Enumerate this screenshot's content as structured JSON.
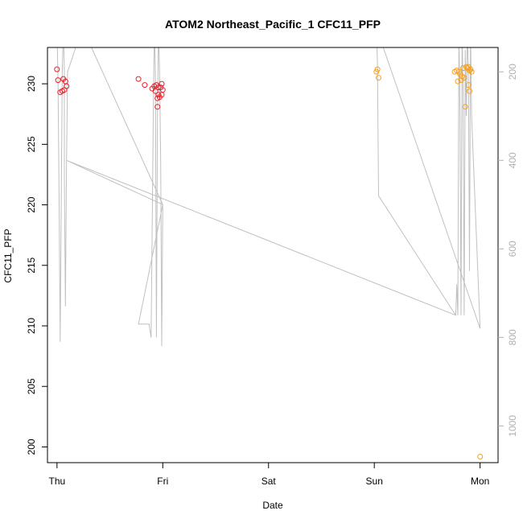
{
  "chart_data": {
    "type": "scatter",
    "title": "ATOM2 Northeast_Pacific_1 CFC11_PFP",
    "xlabel": "Date",
    "ylabel": "CFC11_PFP",
    "x_ticks": [
      "Thu",
      "Fri",
      "Sat",
      "Sun",
      "Mon"
    ],
    "x_range": [
      -0.09,
      4.17
    ],
    "ylim": [
      198.7,
      233.0
    ],
    "y_ticks": [
      200,
      205,
      210,
      215,
      220,
      225,
      230
    ],
    "right_axis": {
      "ticks": [
        200,
        400,
        600,
        800,
        1000
      ],
      "range": [
        1083,
        145
      ],
      "color": "#b0b0b0"
    },
    "grid": false,
    "series": [
      {
        "color": "#e8202a",
        "points": [
          {
            "x": 0.0,
            "y": 231.2
          },
          {
            "x": 0.01,
            "y": 230.3
          },
          {
            "x": 0.03,
            "y": 229.3
          },
          {
            "x": 0.05,
            "y": 229.4
          },
          {
            "x": 0.06,
            "y": 230.4
          },
          {
            "x": 0.07,
            "y": 229.5
          },
          {
            "x": 0.08,
            "y": 230.2
          },
          {
            "x": 0.09,
            "y": 229.8
          },
          {
            "x": 0.77,
            "y": 230.4
          },
          {
            "x": 0.83,
            "y": 229.9
          },
          {
            "x": 0.9,
            "y": 229.6
          },
          {
            "x": 0.92,
            "y": 229.8
          },
          {
            "x": 0.93,
            "y": 229.4
          },
          {
            "x": 0.94,
            "y": 229.9
          },
          {
            "x": 0.95,
            "y": 228.8
          },
          {
            "x": 0.95,
            "y": 228.1
          },
          {
            "x": 0.96,
            "y": 229.1
          },
          {
            "x": 0.97,
            "y": 228.9
          },
          {
            "x": 0.98,
            "y": 229.7
          },
          {
            "x": 0.99,
            "y": 230.0
          },
          {
            "x": 1.0,
            "y": 229.5
          },
          {
            "x": 0.99,
            "y": 229.1
          },
          {
            "x": 0.96,
            "y": 229.7
          }
        ]
      },
      {
        "color": "#f5a020",
        "points": [
          {
            "x": 3.02,
            "y": 231.0
          },
          {
            "x": 3.03,
            "y": 231.2
          },
          {
            "x": 3.04,
            "y": 230.5
          },
          {
            "x": 3.76,
            "y": 231.0
          },
          {
            "x": 3.78,
            "y": 231.1
          },
          {
            "x": 3.79,
            "y": 230.2
          },
          {
            "x": 3.8,
            "y": 231.0
          },
          {
            "x": 3.81,
            "y": 230.8
          },
          {
            "x": 3.82,
            "y": 230.3
          },
          {
            "x": 3.83,
            "y": 230.6
          },
          {
            "x": 3.84,
            "y": 231.3
          },
          {
            "x": 3.85,
            "y": 230.5
          },
          {
            "x": 3.86,
            "y": 228.1
          },
          {
            "x": 3.87,
            "y": 231.4
          },
          {
            "x": 3.88,
            "y": 231.3
          },
          {
            "x": 3.89,
            "y": 229.9
          },
          {
            "x": 3.9,
            "y": 229.4
          },
          {
            "x": 3.91,
            "y": 231.2
          },
          {
            "x": 3.92,
            "y": 231.0
          },
          {
            "x": 3.89,
            "y": 231.4
          },
          {
            "x": 3.9,
            "y": 231.1
          },
          {
            "x": 4.0,
            "y": 199.2
          }
        ]
      }
    ],
    "altitude_line": {
      "color": "#c0c0c0",
      "points": [
        [
          0.0,
          100
        ],
        [
          0.01,
          220
        ],
        [
          0.02,
          500
        ],
        [
          0.03,
          810
        ],
        [
          0.04,
          500
        ],
        [
          0.05,
          200
        ],
        [
          0.06,
          100
        ],
        [
          0.07,
          200
        ],
        [
          0.07,
          440
        ],
        [
          0.08,
          730
        ],
        [
          0.09,
          400
        ],
        [
          0.1,
          200
        ],
        [
          0.24,
          100
        ],
        [
          1.0,
          500
        ],
        [
          0.77,
          770
        ],
        [
          0.87,
          770
        ],
        [
          0.89,
          800
        ],
        [
          0.91,
          300
        ],
        [
          0.92,
          100
        ],
        [
          0.93,
          200
        ],
        [
          0.94,
          800
        ],
        [
          0.95,
          300
        ],
        [
          0.96,
          100
        ],
        [
          0.97,
          200
        ],
        [
          0.98,
          400
        ],
        [
          0.99,
          820
        ],
        [
          1.0,
          500
        ],
        [
          0.09,
          400
        ],
        [
          3.77,
          750
        ],
        [
          3.78,
          680
        ],
        [
          3.79,
          750
        ],
        [
          3.8,
          100
        ],
        [
          3.81,
          300
        ],
        [
          3.82,
          750
        ],
        [
          3.83,
          100
        ],
        [
          3.84,
          250
        ],
        [
          3.85,
          750
        ],
        [
          3.86,
          150
        ],
        [
          3.87,
          300
        ],
        [
          3.88,
          100
        ],
        [
          3.89,
          200
        ],
        [
          3.9,
          650
        ],
        [
          3.91,
          100
        ],
        [
          3.92,
          300
        ],
        [
          4.0,
          780
        ],
        [
          3.02,
          100
        ],
        [
          3.03,
          180
        ],
        [
          3.04,
          480
        ],
        [
          3.77,
          750
        ]
      ]
    }
  }
}
